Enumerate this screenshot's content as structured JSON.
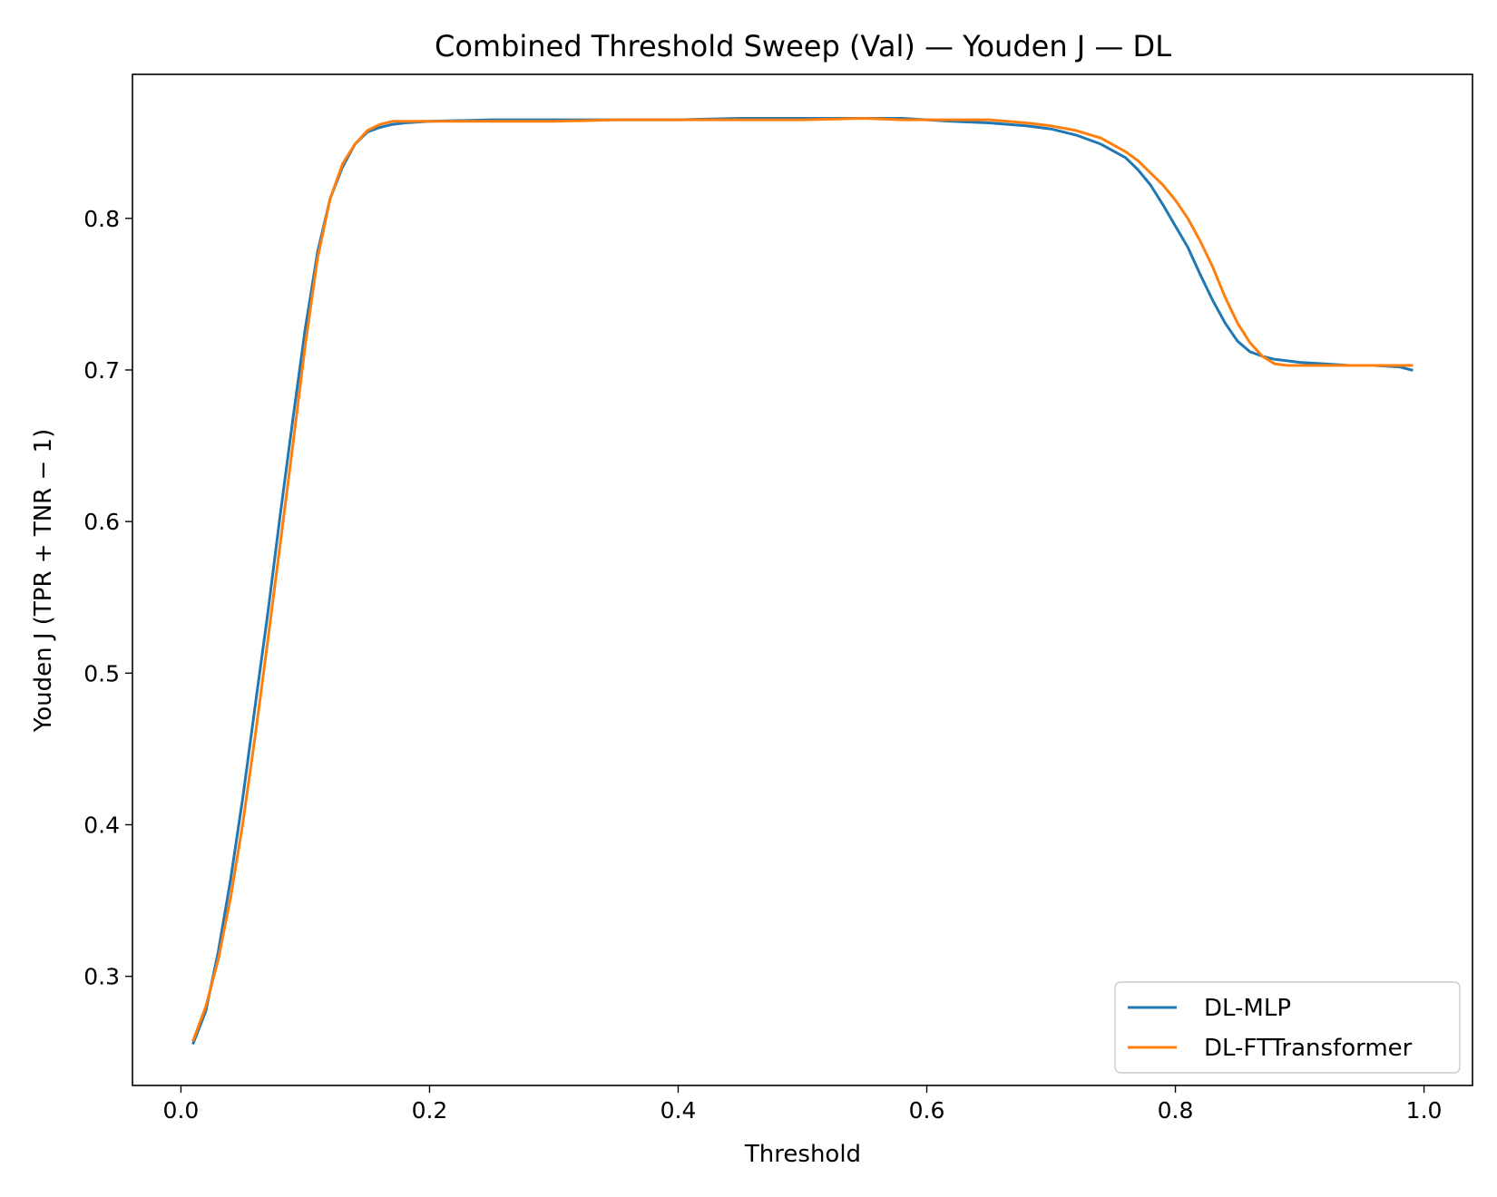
{
  "chart_data": {
    "type": "line",
    "title": "Combined Threshold Sweep (Val) — Youden J — DL",
    "xlabel": "Threshold",
    "ylabel": "Youden J (TPR + TNR − 1)",
    "xlim": [
      -0.039,
      1.039
    ],
    "ylim": [
      0.228,
      0.895
    ],
    "xticks": [
      "0.0",
      "0.2",
      "0.4",
      "0.6",
      "0.8",
      "1.0"
    ],
    "yticks": [
      "0.3",
      "0.4",
      "0.5",
      "0.6",
      "0.7",
      "0.8"
    ],
    "grid": false,
    "legend_position": "lower-right",
    "series": [
      {
        "name": "DL-MLP",
        "color": "#1f77b4",
        "x": [
          0.01,
          0.02,
          0.03,
          0.04,
          0.05,
          0.06,
          0.07,
          0.08,
          0.09,
          0.1,
          0.11,
          0.12,
          0.13,
          0.14,
          0.15,
          0.16,
          0.17,
          0.18,
          0.2,
          0.25,
          0.3,
          0.35,
          0.4,
          0.45,
          0.5,
          0.55,
          0.58,
          0.6,
          0.62,
          0.65,
          0.68,
          0.7,
          0.72,
          0.74,
          0.76,
          0.77,
          0.78,
          0.79,
          0.8,
          0.81,
          0.82,
          0.83,
          0.84,
          0.85,
          0.86,
          0.87,
          0.88,
          0.89,
          0.9,
          0.92,
          0.94,
          0.96,
          0.98,
          0.99
        ],
        "y": [
          0.256,
          0.277,
          0.316,
          0.364,
          0.419,
          0.48,
          0.54,
          0.605,
          0.667,
          0.727,
          0.778,
          0.813,
          0.834,
          0.849,
          0.857,
          0.86,
          0.862,
          0.863,
          0.864,
          0.865,
          0.865,
          0.865,
          0.865,
          0.866,
          0.866,
          0.866,
          0.866,
          0.865,
          0.864,
          0.863,
          0.861,
          0.859,
          0.855,
          0.849,
          0.84,
          0.832,
          0.822,
          0.809,
          0.795,
          0.781,
          0.763,
          0.746,
          0.731,
          0.719,
          0.712,
          0.709,
          0.707,
          0.706,
          0.705,
          0.704,
          0.703,
          0.703,
          0.702,
          0.7
        ]
      },
      {
        "name": "DL-FTTransformer",
        "color": "#ff7f0e",
        "x": [
          0.01,
          0.02,
          0.03,
          0.04,
          0.05,
          0.06,
          0.07,
          0.08,
          0.09,
          0.1,
          0.11,
          0.12,
          0.13,
          0.14,
          0.15,
          0.16,
          0.17,
          0.18,
          0.2,
          0.25,
          0.3,
          0.35,
          0.4,
          0.45,
          0.5,
          0.55,
          0.58,
          0.6,
          0.62,
          0.65,
          0.68,
          0.7,
          0.72,
          0.74,
          0.76,
          0.77,
          0.78,
          0.79,
          0.8,
          0.81,
          0.82,
          0.83,
          0.84,
          0.85,
          0.86,
          0.87,
          0.88,
          0.89,
          0.9,
          0.92,
          0.94,
          0.96,
          0.98,
          0.99
        ],
        "y": [
          0.258,
          0.28,
          0.311,
          0.352,
          0.402,
          0.46,
          0.522,
          0.586,
          0.65,
          0.716,
          0.774,
          0.813,
          0.836,
          0.849,
          0.858,
          0.862,
          0.864,
          0.864,
          0.864,
          0.864,
          0.864,
          0.865,
          0.865,
          0.865,
          0.865,
          0.866,
          0.865,
          0.865,
          0.865,
          0.865,
          0.863,
          0.861,
          0.858,
          0.853,
          0.844,
          0.838,
          0.83,
          0.822,
          0.812,
          0.8,
          0.785,
          0.768,
          0.748,
          0.731,
          0.718,
          0.709,
          0.704,
          0.703,
          0.703,
          0.703,
          0.703,
          0.703,
          0.703,
          0.703
        ]
      }
    ]
  }
}
